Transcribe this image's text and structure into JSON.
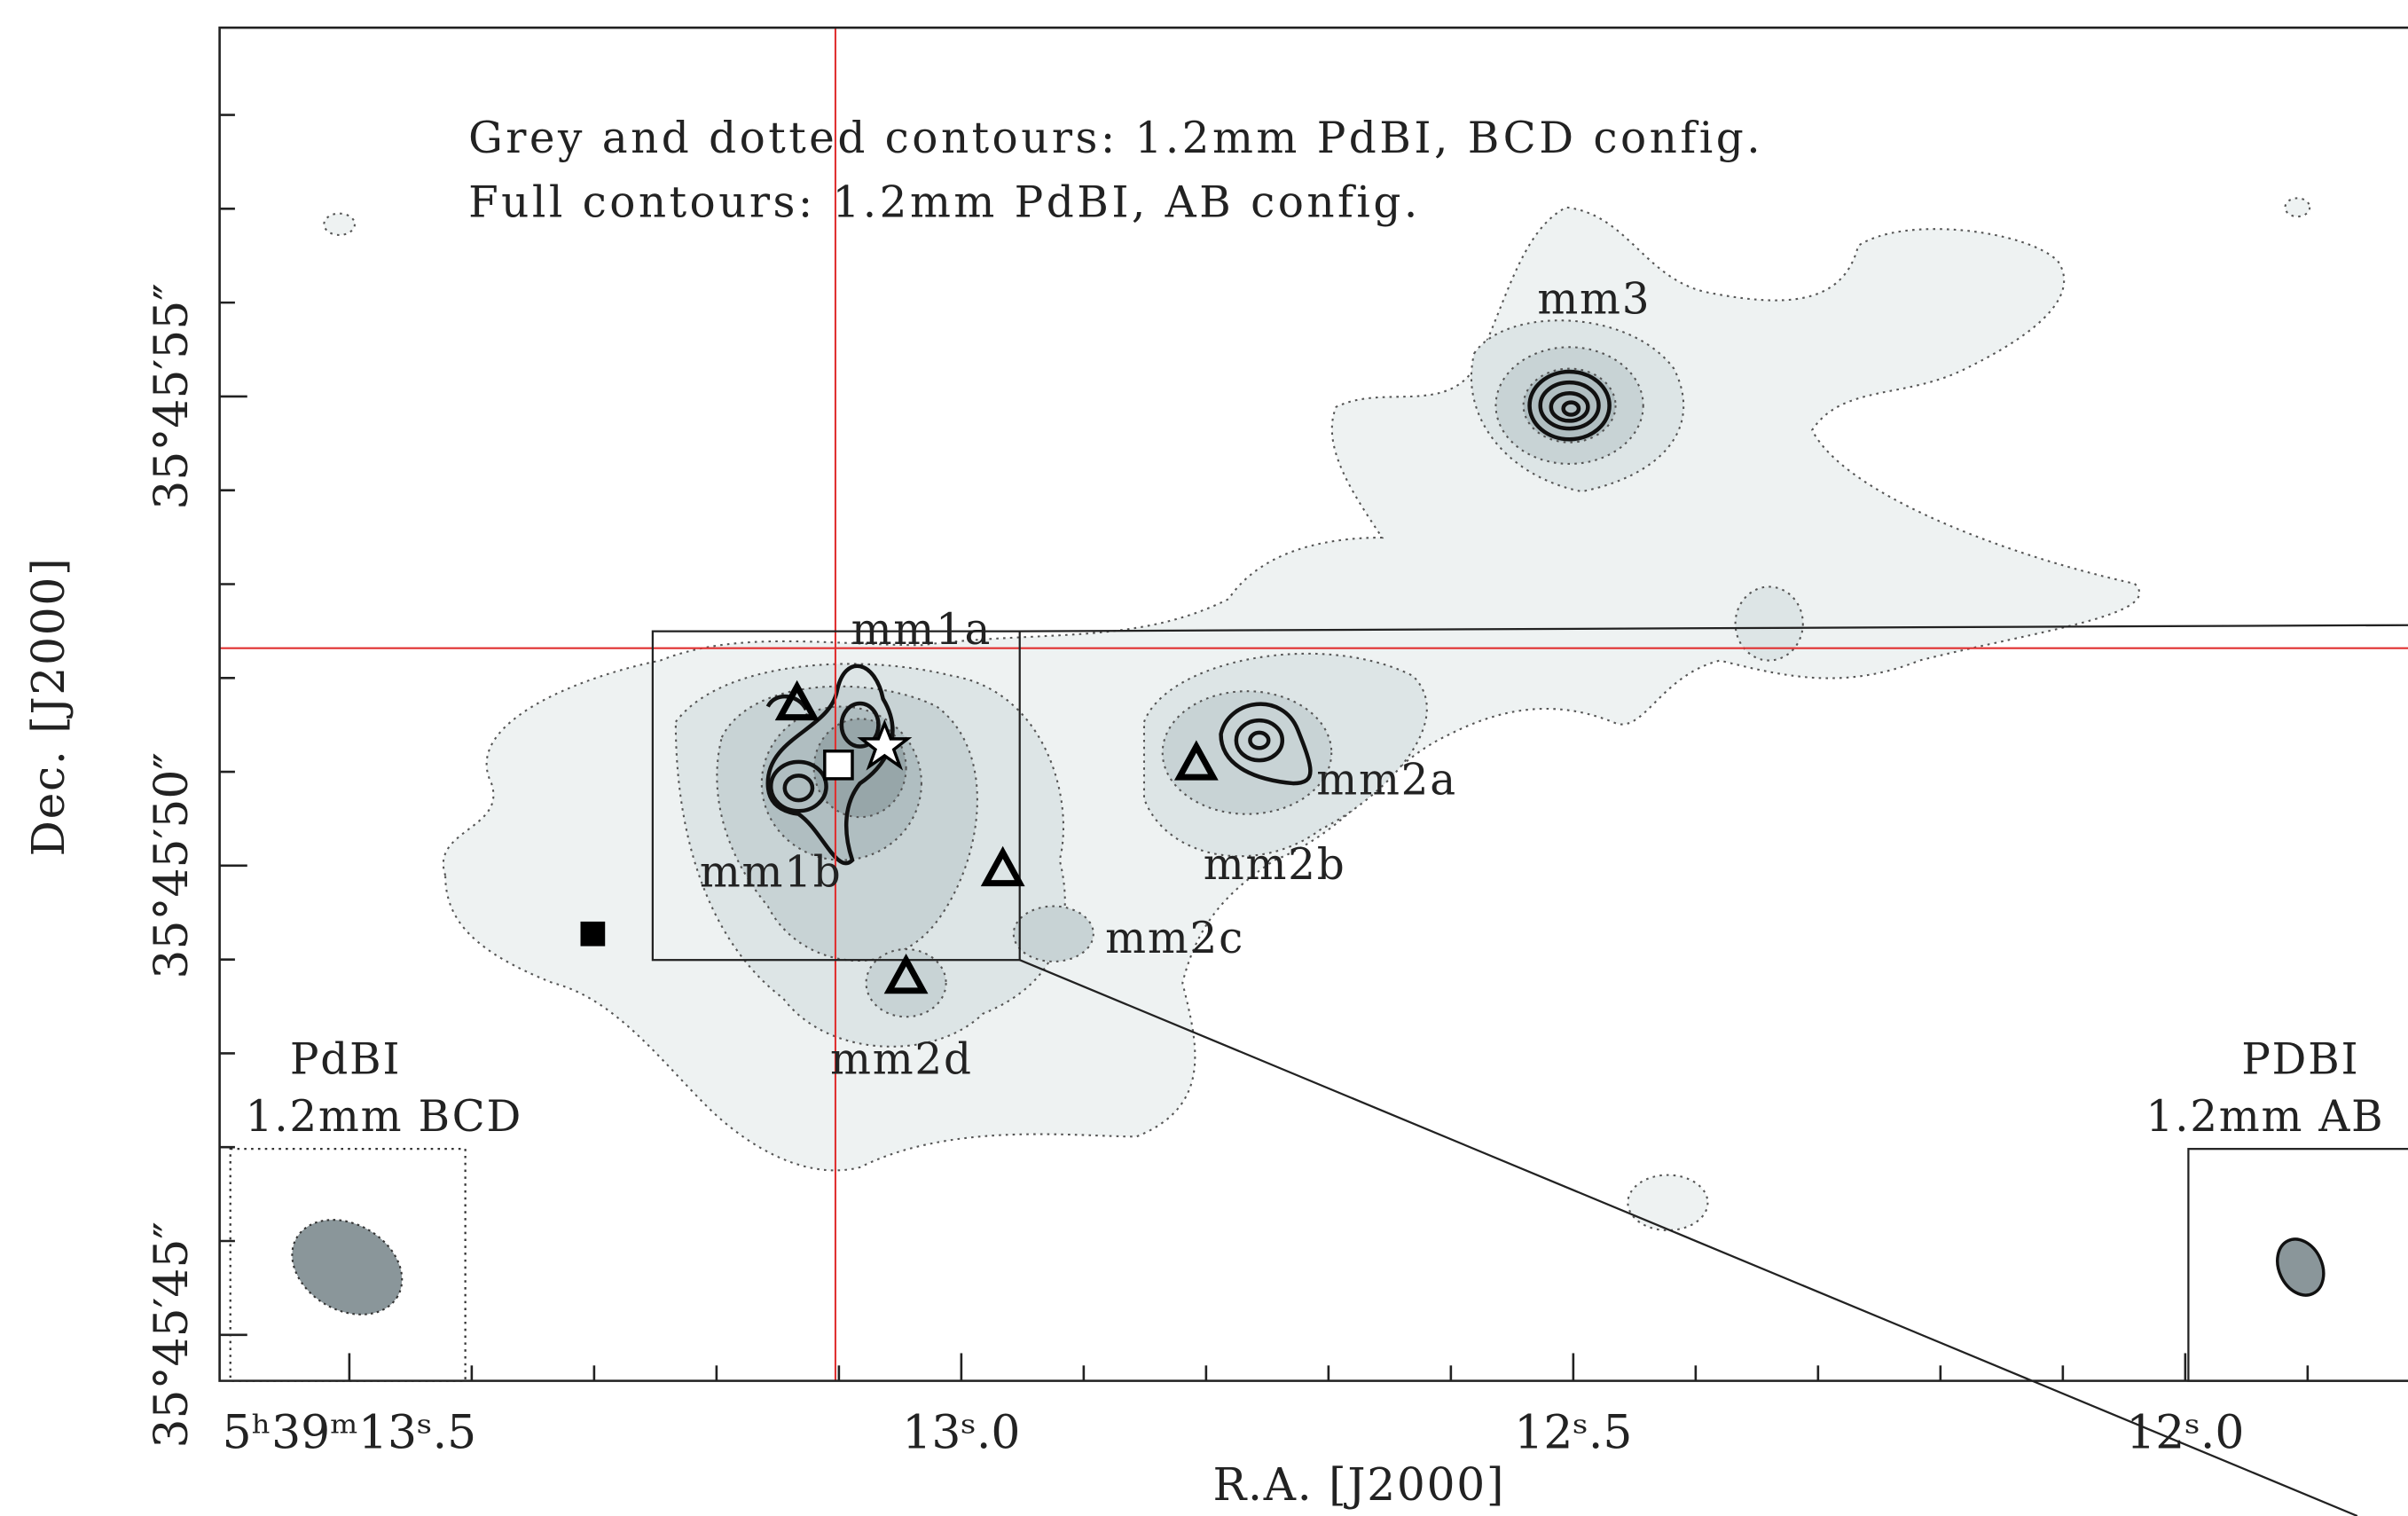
{
  "chart_data": {
    "type": "contour-map",
    "notes": [
      "Grey and dotted contours: 1.2mm PdBI, BCD config.",
      "Full contours: 1.2mm PdBI, AB config."
    ],
    "x_label": "R.A. [J2000]",
    "y_label": "Dec. [J2000]",
    "xlim": [
      13.606,
      11.818
    ],
    "ylim": [
      44.51,
      58.93
    ],
    "xticks": [
      {
        "value": 13.5,
        "label": "5ʰ39ᵐ13ˢ.5"
      },
      {
        "value": 13.0,
        "label": "13ˢ.0"
      },
      {
        "value": 12.5,
        "label": "12ˢ.5"
      },
      {
        "value": 12.0,
        "label": "12ˢ.0"
      }
    ],
    "xminorticks": [
      13.4,
      13.3,
      13.2,
      13.1,
      12.9,
      12.8,
      12.7,
      12.6,
      12.4,
      12.3,
      12.2,
      12.1,
      11.9
    ],
    "yticks": [
      {
        "value": 55,
        "label": "35°45′55″"
      },
      {
        "value": 50,
        "label": "35°45′50″"
      },
      {
        "value": 45,
        "label": "35°45′45″"
      }
    ],
    "yminorticks": [
      58,
      57,
      56,
      54,
      53,
      52,
      51,
      49,
      48,
      47,
      46
    ],
    "sources": [
      "mm1a",
      "mm1b",
      "mm2a",
      "mm2b",
      "mm2c",
      "mm2d",
      "mm3"
    ],
    "beams": [
      {
        "telescope": "PdBI",
        "band": "1.2mm BCD"
      },
      {
        "telescope": "PDBI",
        "band": "1.2mm AB"
      }
    ]
  }
}
